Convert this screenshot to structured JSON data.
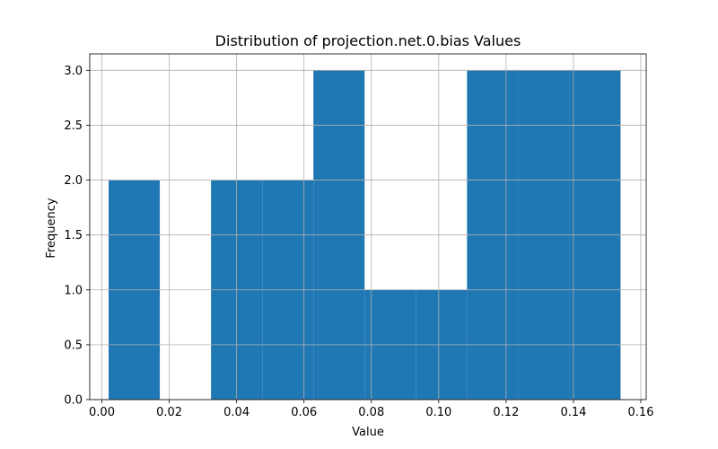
{
  "chart_data": {
    "type": "bar",
    "title": "Distribution of projection.net.0.bias Values",
    "xlabel": "Value",
    "ylabel": "Frequency",
    "bins": [
      {
        "start": 0.002,
        "end": 0.0172,
        "count": 2
      },
      {
        "start": 0.0172,
        "end": 0.0324,
        "count": 0
      },
      {
        "start": 0.0324,
        "end": 0.0476,
        "count": 2
      },
      {
        "start": 0.0476,
        "end": 0.0628,
        "count": 2
      },
      {
        "start": 0.0628,
        "end": 0.078,
        "count": 3
      },
      {
        "start": 0.078,
        "end": 0.0932,
        "count": 1
      },
      {
        "start": 0.0932,
        "end": 0.1084,
        "count": 1
      },
      {
        "start": 0.1084,
        "end": 0.1236,
        "count": 3
      },
      {
        "start": 0.1236,
        "end": 0.1388,
        "count": 3
      },
      {
        "start": 0.1388,
        "end": 0.154,
        "count": 3
      }
    ],
    "xlim": [
      -0.0036,
      0.1616
    ],
    "ylim": [
      0,
      3.15
    ],
    "xticks": [
      0.0,
      0.02,
      0.04,
      0.06,
      0.08,
      0.1,
      0.12,
      0.14,
      0.16
    ],
    "xtick_labels": [
      "0.00",
      "0.02",
      "0.04",
      "0.06",
      "0.08",
      "0.10",
      "0.12",
      "0.14",
      "0.16"
    ],
    "yticks": [
      0.0,
      0.5,
      1.0,
      1.5,
      2.0,
      2.5,
      3.0
    ],
    "ytick_labels": [
      "0.0",
      "0.5",
      "1.0",
      "1.5",
      "2.0",
      "2.5",
      "3.0"
    ],
    "grid": true,
    "bar_color": "#1f77b4",
    "grid_color": "#b0b0b0"
  }
}
